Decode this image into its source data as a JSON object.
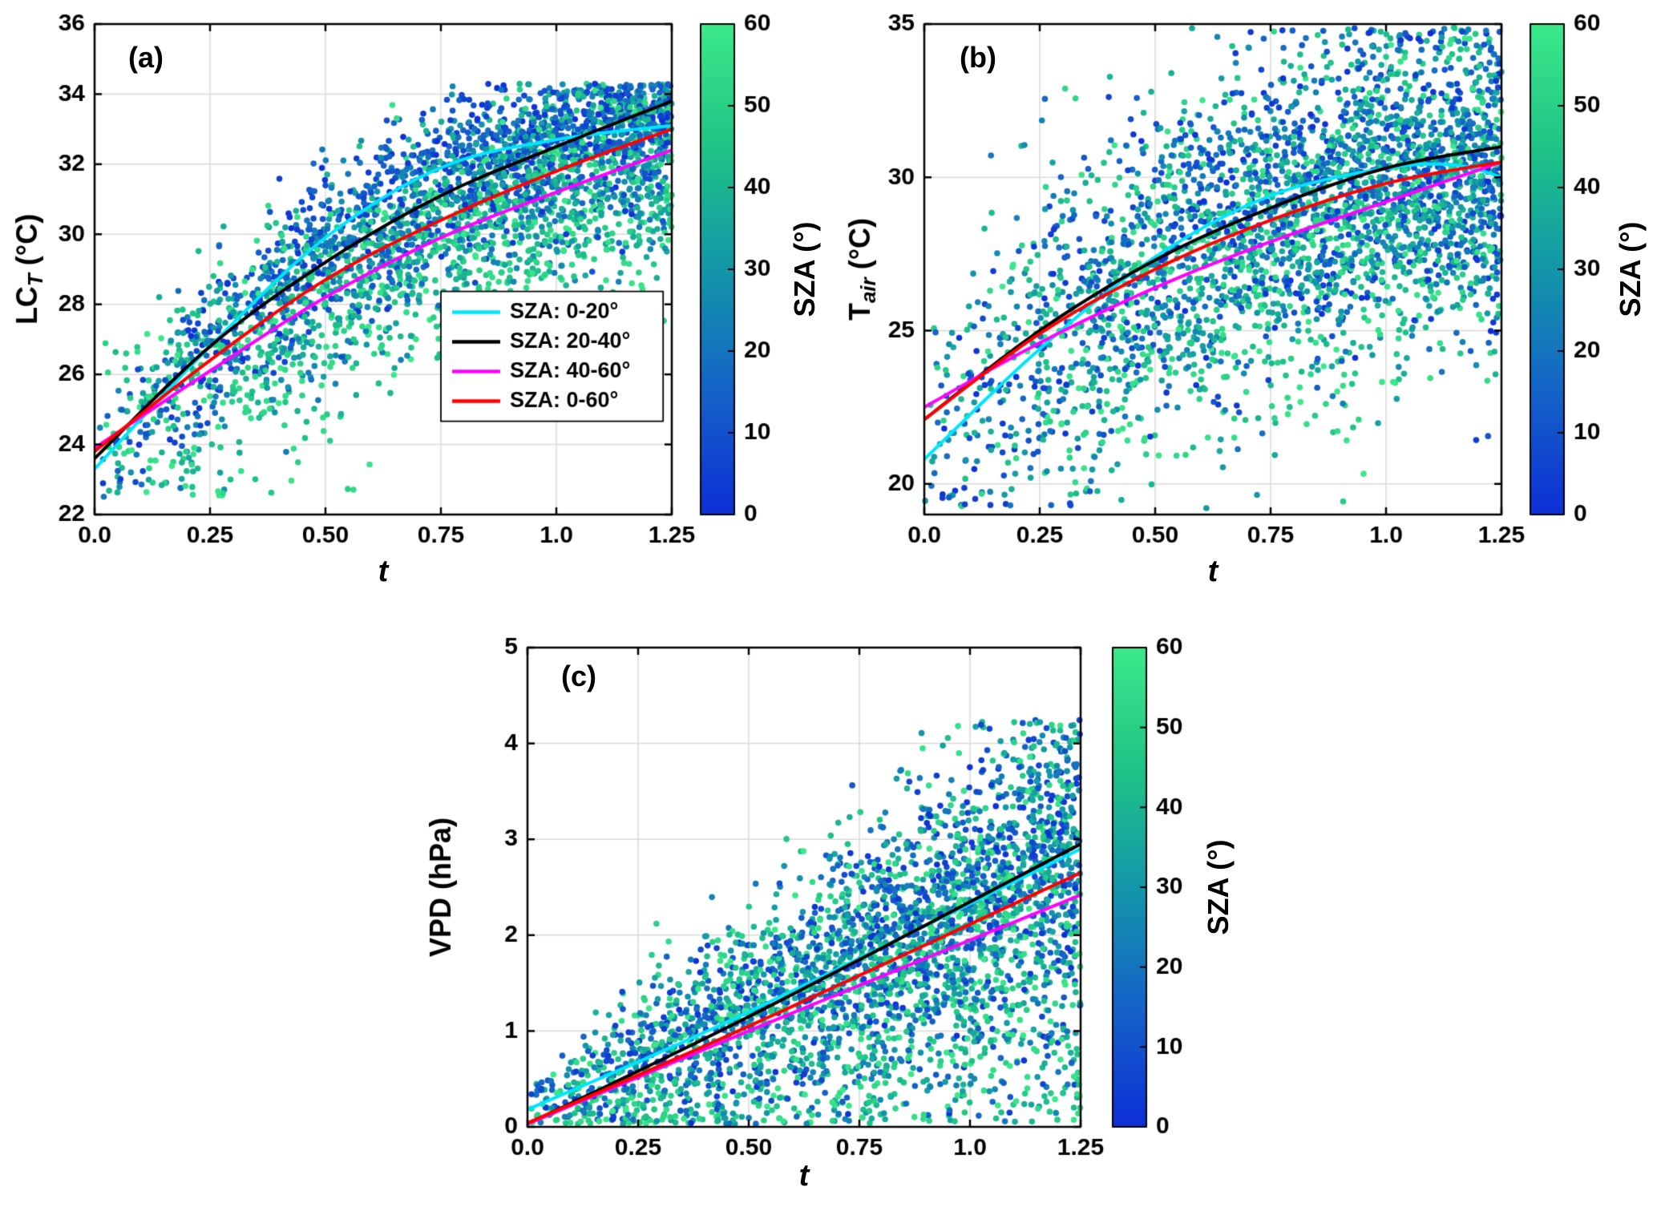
{
  "figure": {
    "background": "#ffffff",
    "colormap": {
      "description": "SZA color scale, deep blue at 0 deg to bright green at 60 deg",
      "stops": [
        {
          "v": 0,
          "color": "#0d2fd6"
        },
        {
          "v": 15,
          "color": "#1563c8"
        },
        {
          "v": 30,
          "color": "#1397a9"
        },
        {
          "v": 45,
          "color": "#1fc486"
        },
        {
          "v": 60,
          "color": "#3ce98a"
        }
      ]
    },
    "colorbar": {
      "label": "SZA (°)",
      "min": 0,
      "max": 60,
      "ticks": [
        0,
        10,
        20,
        30,
        40,
        50,
        60
      ]
    },
    "legend": {
      "position": "lower-right inside panel (a)",
      "entries": [
        {
          "label": "SZA: 0-20°",
          "color": "#00e5ff"
        },
        {
          "label": "SZA: 20-40°",
          "color": "#000000"
        },
        {
          "label": "SZA: 40-60°",
          "color": "#ff00ff"
        },
        {
          "label": "SZA: 0-60°",
          "color": "#ff0000"
        }
      ]
    }
  },
  "chart_data": [
    {
      "type": "scatter",
      "panel": "(a)",
      "xlabel": "t",
      "ylabel": "LC_T (°C)",
      "ylabel_parts": [
        {
          "text": "LC"
        },
        {
          "text": "T",
          "sub": true
        },
        {
          "text": " (°C)"
        }
      ],
      "xlim": [
        0,
        1.25
      ],
      "ylim": [
        22,
        36
      ],
      "xticks": {
        "values": [
          0,
          0.25,
          0.5,
          0.75,
          1,
          1.25
        ],
        "labels": [
          "0.0",
          "0.25",
          "0.50",
          "0.75",
          "1.0",
          "1.25"
        ]
      },
      "yticks": {
        "values": [
          22,
          24,
          26,
          28,
          30,
          32,
          34,
          36
        ],
        "labels": [
          "22",
          "24",
          "26",
          "28",
          "30",
          "32",
          "34",
          "36"
        ]
      },
      "grid": true,
      "show_legend": true,
      "series": [
        {
          "name": "SZA: 0-20°",
          "color": "#00e5ff",
          "points": [
            [
              0,
              23.3
            ],
            [
              0.25,
              26.8
            ],
            [
              0.5,
              29.9
            ],
            [
              0.75,
              31.9
            ],
            [
              1.0,
              32.7
            ],
            [
              1.25,
              33.1
            ]
          ]
        },
        {
          "name": "SZA: 20-40°",
          "color": "#000000",
          "points": [
            [
              0,
              23.6
            ],
            [
              0.25,
              26.8
            ],
            [
              0.5,
              29.2
            ],
            [
              0.75,
              31.1
            ],
            [
              1.0,
              32.5
            ],
            [
              1.25,
              33.8
            ]
          ]
        },
        {
          "name": "SZA: 40-60°",
          "color": "#ff00ff",
          "points": [
            [
              0,
              23.9
            ],
            [
              0.25,
              26.1
            ],
            [
              0.5,
              28.2
            ],
            [
              0.75,
              29.9
            ],
            [
              1.0,
              31.2
            ],
            [
              1.25,
              32.4
            ]
          ]
        },
        {
          "name": "SZA: 0-60°",
          "color": "#ff0000",
          "points": [
            [
              0,
              23.8
            ],
            [
              0.25,
              26.4
            ],
            [
              0.5,
              28.7
            ],
            [
              0.75,
              30.4
            ],
            [
              1.0,
              31.8
            ],
            [
              1.25,
              33.0
            ]
          ]
        }
      ],
      "scatter_model": {
        "note": "Dense cloud of ~3000 unlabeled points; LCT increases and saturates with t; low-SZA (blue) points lie above high-SZA (green) points",
        "n_points": 3200,
        "seed": 42,
        "x_exponent": 0.62,
        "sza_range": [
          0,
          60
        ],
        "trend_low": 0,
        "trend_high": 2,
        "sd_base": 0.95,
        "sd_x_slope": 0,
        "sd_green_extra": 0.45,
        "neg_skew": 1.45,
        "y_min": 22.5,
        "y_max": 34.3
      }
    },
    {
      "type": "scatter",
      "panel": "(b)",
      "xlabel": "t",
      "ylabel": "T_air (°C)",
      "ylabel_parts": [
        {
          "text": "T"
        },
        {
          "text": "air",
          "sub": true
        },
        {
          "text": " (°C)"
        }
      ],
      "xlim": [
        0,
        1.25
      ],
      "ylim": [
        19,
        35
      ],
      "xticks": {
        "values": [
          0,
          0.25,
          0.5,
          0.75,
          1,
          1.25
        ],
        "labels": [
          "0.0",
          "0.25",
          "0.50",
          "0.75",
          "1.0",
          "1.25"
        ]
      },
      "yticks": {
        "values": [
          20,
          25,
          30,
          35
        ],
        "labels": [
          "20",
          "25",
          "30",
          "35"
        ]
      },
      "grid": true,
      "show_legend": false,
      "series": [
        {
          "name": "SZA: 0-20°",
          "color": "#00e5ff",
          "points": [
            [
              0,
              20.8
            ],
            [
              0.25,
              24.4
            ],
            [
              0.5,
              27.4
            ],
            [
              0.75,
              29.4
            ],
            [
              1.0,
              30.3
            ],
            [
              1.15,
              30.4
            ],
            [
              1.25,
              30.0
            ]
          ]
        },
        {
          "name": "SZA: 20-40°",
          "color": "#000000",
          "points": [
            [
              0,
              22.1
            ],
            [
              0.25,
              25.0
            ],
            [
              0.5,
              27.3
            ],
            [
              0.75,
              29.0
            ],
            [
              1.0,
              30.3
            ],
            [
              1.25,
              31.0
            ]
          ]
        },
        {
          "name": "SZA: 40-60°",
          "color": "#ff00ff",
          "points": [
            [
              0,
              22.5
            ],
            [
              0.25,
              24.6
            ],
            [
              0.5,
              26.4
            ],
            [
              0.75,
              27.9
            ],
            [
              1.0,
              29.2
            ],
            [
              1.25,
              30.5
            ]
          ]
        },
        {
          "name": "SZA: 0-60°",
          "color": "#ff0000",
          "points": [
            [
              0,
              22.1
            ],
            [
              0.25,
              24.9
            ],
            [
              0.5,
              27.0
            ],
            [
              0.75,
              28.6
            ],
            [
              1.0,
              29.8
            ],
            [
              1.25,
              30.5
            ]
          ]
        }
      ],
      "scatter_model": {
        "note": "Very widely scattered air-temperature points (about 19-35 C) rising with t; blue points dominate the upper band",
        "n_points": 3200,
        "seed": 7,
        "x_exponent": 0.6,
        "sza_range": [
          0,
          60
        ],
        "trend_low": 0,
        "trend_high": 2,
        "sd_base": 2.4,
        "sd_x_slope": 0,
        "sd_green_extra": 0.4,
        "neg_skew": 1.05,
        "y_min": 19.2,
        "y_max": 34.9
      }
    },
    {
      "type": "scatter",
      "panel": "(c)",
      "xlabel": "t",
      "ylabel": "VPD (hPa)",
      "ylabel_parts": [
        {
          "text": "VPD (hPa)"
        }
      ],
      "xlim": [
        0,
        1.25
      ],
      "ylim": [
        0,
        5
      ],
      "xticks": {
        "values": [
          0,
          0.25,
          0.5,
          0.75,
          1,
          1.25
        ],
        "labels": [
          "0.0",
          "0.25",
          "0.50",
          "0.75",
          "1.0",
          "1.25"
        ]
      },
      "yticks": {
        "values": [
          0,
          1,
          2,
          3,
          4,
          5
        ],
        "labels": [
          "0",
          "1",
          "2",
          "3",
          "4",
          "5"
        ]
      },
      "grid": true,
      "show_legend": false,
      "series": [
        {
          "name": "SZA: 0-20°",
          "color": "#00e5ff",
          "points": [
            [
              0,
              0.18
            ],
            [
              0.5,
              1.2
            ],
            [
              1.25,
              2.9
            ]
          ]
        },
        {
          "name": "SZA: 20-40°",
          "color": "#000000",
          "points": [
            [
              0,
              0.03
            ],
            [
              0.5,
              1.15
            ],
            [
              1.25,
              2.95
            ]
          ]
        },
        {
          "name": "SZA: 40-60°",
          "color": "#ff00ff",
          "points": [
            [
              0,
              0.03
            ],
            [
              0.5,
              1.0
            ],
            [
              1.25,
              2.42
            ]
          ]
        },
        {
          "name": "SZA: 0-60°",
          "color": "#ff0000",
          "points": [
            [
              0,
              0.04
            ],
            [
              0.5,
              1.05
            ],
            [
              1.25,
              2.65
            ]
          ]
        }
      ],
      "scatter_model": {
        "note": "VPD increases roughly linearly with t; spread grows with t (0 to ~4.2 hPa); fit lines nearly linear",
        "n_points": 3200,
        "seed": 99,
        "x_exponent": 0.6,
        "sza_range": [
          0,
          60
        ],
        "trend_low": 0,
        "trend_high": 2,
        "sd_base": 0.15,
        "sd_x_slope": 0.6,
        "sd_green_extra": 0.15,
        "neg_skew": 1.25,
        "y_min": 0.03,
        "y_max": 4.25
      }
    }
  ]
}
